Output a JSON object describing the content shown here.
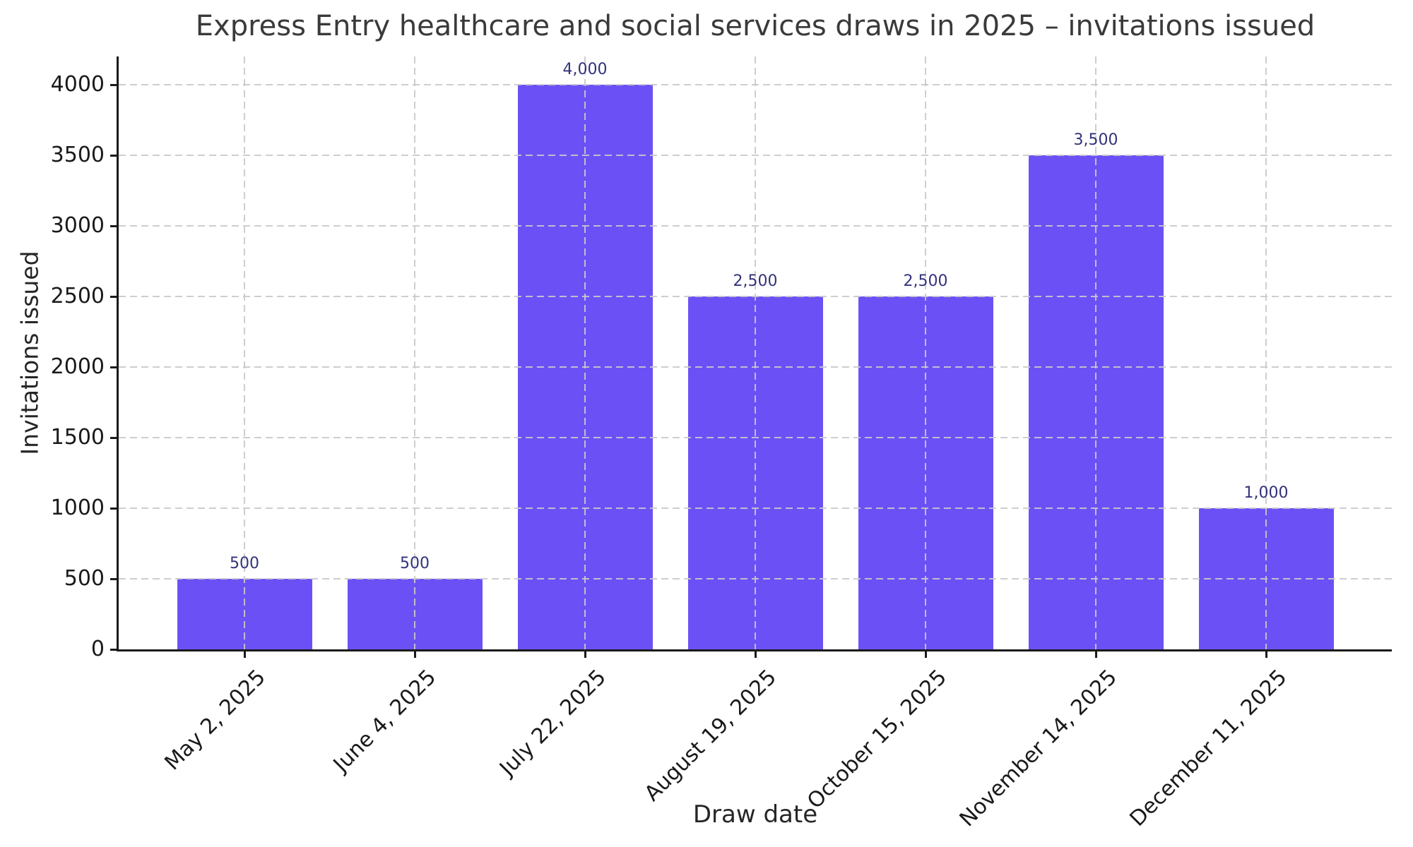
{
  "chart_data": {
    "type": "bar",
    "title": "Express Entry healthcare and social services draws in 2025 – invitations issued",
    "xlabel": "Draw date",
    "ylabel": "Invitations issued",
    "categories": [
      "May 2, 2025",
      "June 4, 2025",
      "July 22, 2025",
      "August 19, 2025",
      "October 15, 2025",
      "November 14, 2025",
      "December 11, 2025"
    ],
    "values": [
      500,
      500,
      4000,
      2500,
      2500,
      3500,
      1000
    ],
    "bar_value_labels": [
      "500",
      "500",
      "4,000",
      "2,500",
      "2,500",
      "3,500",
      "1,000"
    ],
    "yticks": [
      0,
      500,
      1000,
      1500,
      2000,
      2500,
      3000,
      3500,
      4000
    ],
    "ylim": [
      0,
      4200
    ],
    "grid": "dashed gray, horizontal and vertical, drawn above bars",
    "legend": "none",
    "colors": {
      "bar": "#6b51f5",
      "bar_value_label": "#32327d",
      "grid": "#c9c9c9",
      "spine": "#1a1a1a",
      "tick_label": "#1a1a1a",
      "title": "#3a3a3a"
    }
  }
}
